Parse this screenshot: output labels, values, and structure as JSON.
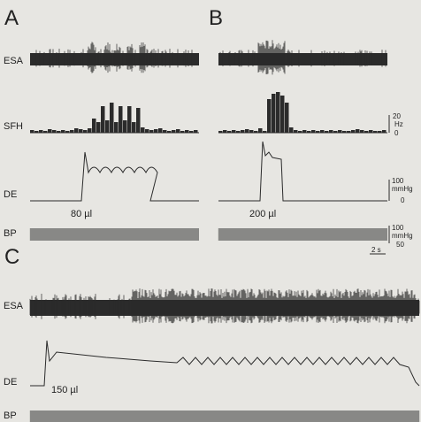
{
  "panels": {
    "A": "A",
    "B": "B",
    "C": "C"
  },
  "row_labels": {
    "esa": "ESA",
    "sfh": "SFH",
    "de": "DE",
    "bp": "BP"
  },
  "volumes": {
    "a": "80 µl",
    "b": "200 µl",
    "c": "150 µl"
  },
  "scales": {
    "sfh_top": "20",
    "sfh_unit": "Hz",
    "sfh_bottom": "0",
    "de_top": "100",
    "de_unit": "mmHg",
    "de_bottom": "0",
    "bp_top": "100",
    "bp_unit": "mmHg",
    "bp_bottom": "50",
    "time_bar": "2 s"
  },
  "colors": {
    "background": "#e7e6e2",
    "trace": "#2b2b2b"
  }
}
